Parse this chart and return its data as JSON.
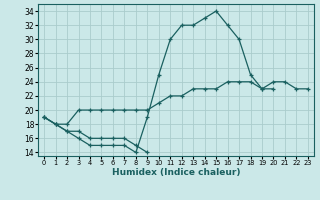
{
  "xlabel": "Humidex (Indice chaleur)",
  "bg_color": "#cbe8e8",
  "grid_color": "#aacccc",
  "line_color": "#1a6060",
  "xlim": [
    -0.5,
    23.5
  ],
  "ylim": [
    13.5,
    35.0
  ],
  "xticks": [
    0,
    1,
    2,
    3,
    4,
    5,
    6,
    7,
    8,
    9,
    10,
    11,
    12,
    13,
    14,
    15,
    16,
    17,
    18,
    19,
    20,
    21,
    22,
    23
  ],
  "yticks": [
    14,
    16,
    18,
    20,
    22,
    24,
    26,
    28,
    30,
    32,
    34
  ],
  "line1_x": [
    0,
    1,
    2,
    3,
    4,
    5,
    6,
    7,
    8,
    9,
    10,
    11,
    12,
    13,
    14,
    15,
    16,
    17,
    18,
    19,
    20
  ],
  "line1_y": [
    19,
    18,
    17,
    16,
    15,
    15,
    15,
    15,
    14,
    19,
    25,
    30,
    32,
    32,
    33,
    34,
    32,
    30,
    25,
    23,
    23
  ],
  "line2_x": [
    0,
    1,
    2,
    3,
    4,
    5,
    6,
    7,
    8,
    9,
    10,
    11,
    12,
    13,
    14,
    15,
    16,
    17,
    18,
    19,
    20,
    21,
    22,
    23
  ],
  "line2_y": [
    19,
    18,
    18,
    20,
    20,
    20,
    20,
    20,
    20,
    20,
    21,
    22,
    22,
    23,
    23,
    23,
    24,
    24,
    24,
    23,
    24,
    24,
    23,
    23
  ],
  "line3_x": [
    0,
    1,
    2,
    3,
    4,
    5,
    6,
    7,
    8,
    9,
    10,
    11,
    12,
    13,
    14,
    15,
    16,
    17,
    18,
    19,
    20,
    21,
    22,
    23
  ],
  "line3_y": [
    19,
    18,
    17,
    17,
    16,
    16,
    16,
    16,
    15,
    14,
    null,
    null,
    null,
    null,
    null,
    null,
    null,
    null,
    null,
    null,
    null,
    null,
    null,
    null
  ]
}
